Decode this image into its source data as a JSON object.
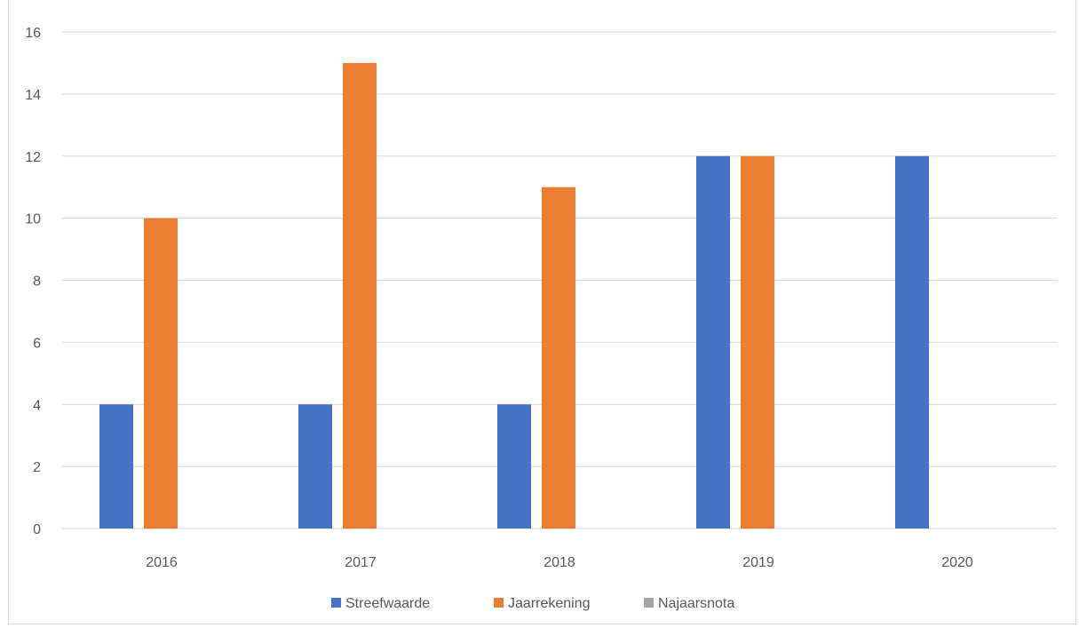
{
  "chart_data": {
    "type": "bar",
    "title": "",
    "xlabel": "",
    "ylabel": "",
    "categories": [
      "2016",
      "2017",
      "2018",
      "2019",
      "2020"
    ],
    "series": [
      {
        "name": "Streefwaarde",
        "values": [
          4,
          4,
          4,
          12,
          12
        ],
        "color": "#4472c4"
      },
      {
        "name": "Jaarrekening",
        "values": [
          10,
          15,
          11,
          12,
          null
        ],
        "color": "#ed7d31"
      },
      {
        "name": "Najaarsnota",
        "values": [
          null,
          null,
          null,
          null,
          null
        ],
        "color": "#a5a5a5"
      }
    ],
    "ylim": [
      0,
      16
    ],
    "yticks": [
      0,
      2,
      4,
      6,
      8,
      10,
      12,
      14,
      16
    ],
    "grid": true,
    "legend_position": "bottom"
  }
}
